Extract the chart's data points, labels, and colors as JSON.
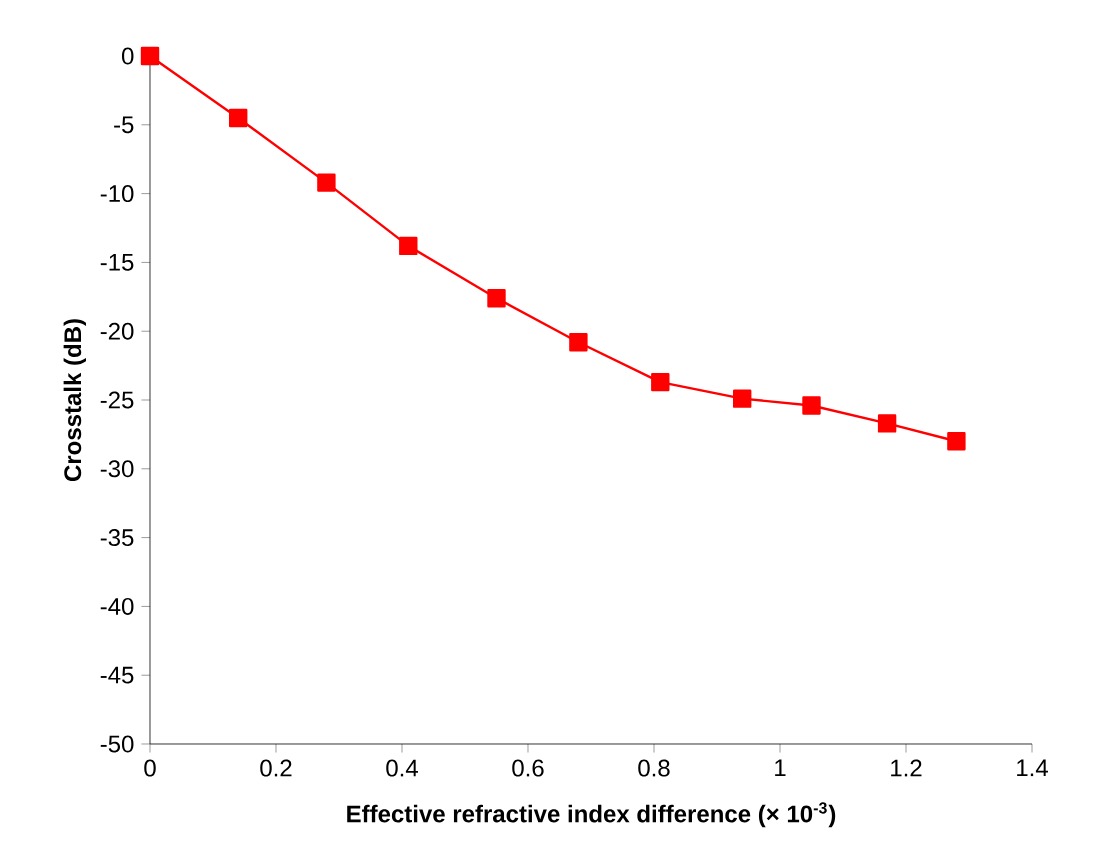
{
  "chart_data": {
    "type": "line",
    "xlabel": "Effective refractive index difference (× 10$^{-3}$)",
    "ylabel": "Crosstalk (dB)",
    "x": [
      0,
      0.14,
      0.28,
      0.41,
      0.55,
      0.68,
      0.81,
      0.94,
      1.05,
      1.17,
      1.28
    ],
    "series": [
      {
        "color": "#ff0000",
        "values": [
          0,
          -4.5,
          -9.2,
          -13.8,
          -17.6,
          -20.8,
          -23.7,
          -24.9,
          -25.4,
          -26.7,
          -28.0
        ]
      }
    ],
    "xlim": [
      0,
      1.4
    ],
    "ylim": [
      -50,
      0
    ],
    "xticks": [
      0,
      0.2,
      0.4,
      0.6,
      0.8,
      1,
      1.2,
      1.4
    ],
    "yticks": [
      0,
      -5,
      -10,
      -15,
      -20,
      -25,
      -30,
      -35,
      -40,
      -45,
      -50
    ],
    "grid": false,
    "legend": false,
    "marker": "square",
    "line_style": "solid"
  }
}
